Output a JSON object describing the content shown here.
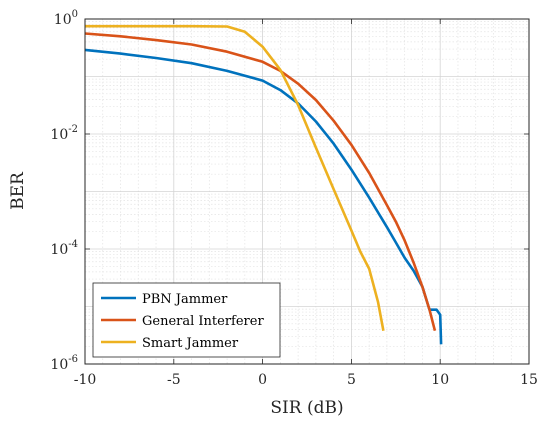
{
  "chart_data": {
    "type": "line",
    "title": "",
    "xlabel": "SIR (dB)",
    "ylabel": "BER",
    "xlim": [
      -10,
      15
    ],
    "ylim": [
      1e-06,
      1
    ],
    "yscale": "log",
    "grid": true,
    "legend_position": "bottom-left",
    "x_ticks": [
      -10,
      -5,
      0,
      5,
      10,
      15
    ],
    "x_tick_labels": [
      "-10",
      "-5",
      "0",
      "5",
      "10",
      "15"
    ],
    "y_ticks": [
      {
        "value": 1e-06,
        "base": "10",
        "exponent": "-6"
      },
      {
        "value": 0.0001,
        "base": "10",
        "exponent": "-4"
      },
      {
        "value": 0.01,
        "base": "10",
        "exponent": "-2"
      },
      {
        "value": 1,
        "base": "10",
        "exponent": "0"
      }
    ],
    "series": [
      {
        "name": "PBN Jammer",
        "color": "#0072BD",
        "points": [
          [
            -10,
            0.29
          ],
          [
            -8,
            0.25
          ],
          [
            -6,
            0.21
          ],
          [
            -4,
            0.17
          ],
          [
            -2,
            0.125
          ],
          [
            0,
            0.085
          ],
          [
            1,
            0.058
          ],
          [
            2,
            0.034
          ],
          [
            3,
            0.0165
          ],
          [
            4,
            0.0068
          ],
          [
            5,
            0.0024
          ],
          [
            6,
            0.00078
          ],
          [
            7,
            0.00024
          ],
          [
            7.5,
            0.00013
          ],
          [
            8,
            7e-05
          ],
          [
            8.5,
            4.2e-05
          ],
          [
            9,
            2.2e-05
          ],
          [
            9.4,
            8.8e-06
          ],
          [
            9.8,
            8.8e-06
          ],
          [
            10,
            7.2e-06
          ],
          [
            10.05,
            2.2e-06
          ]
        ]
      },
      {
        "name": "General Interferer",
        "color": "#D95319",
        "points": [
          [
            -10,
            0.56
          ],
          [
            -8,
            0.5
          ],
          [
            -6,
            0.43
          ],
          [
            -4,
            0.36
          ],
          [
            -2,
            0.27
          ],
          [
            0,
            0.18
          ],
          [
            1,
            0.125
          ],
          [
            2,
            0.075
          ],
          [
            3,
            0.039
          ],
          [
            4,
            0.017
          ],
          [
            5,
            0.0065
          ],
          [
            6,
            0.0021
          ],
          [
            7,
            0.00058
          ],
          [
            7.5,
            0.0003
          ],
          [
            8,
            0.00014
          ],
          [
            8.5,
            5.8e-05
          ],
          [
            9,
            2.2e-05
          ],
          [
            9.4,
            8.8e-06
          ],
          [
            9.7,
            3.8e-06
          ]
        ]
      },
      {
        "name": "Smart Jammer",
        "color": "#EDB120",
        "points": [
          [
            -10,
            0.75
          ],
          [
            -8,
            0.75
          ],
          [
            -6,
            0.75
          ],
          [
            -4,
            0.75
          ],
          [
            -2,
            0.74
          ],
          [
            -1,
            0.6
          ],
          [
            0,
            0.33
          ],
          [
            1,
            0.13
          ],
          [
            2,
            0.032
          ],
          [
            3,
            0.0058
          ],
          [
            4,
            0.0011
          ],
          [
            5,
            0.00021
          ],
          [
            5.5,
            9e-05
          ],
          [
            6,
            4.5e-05
          ],
          [
            6.5,
            1.2e-05
          ],
          [
            6.8,
            3.8e-06
          ]
        ]
      }
    ]
  }
}
